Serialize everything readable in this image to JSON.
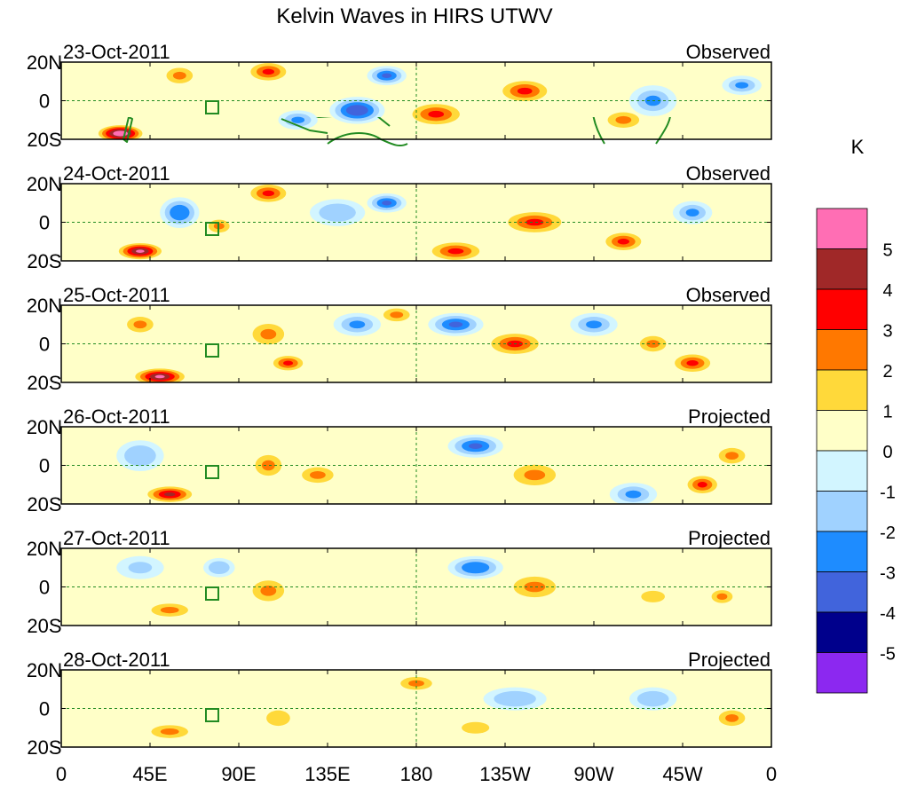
{
  "chart_data": {
    "type": "heatmap",
    "title": "Kelvin Waves in HIRS UTWV",
    "units": "K",
    "lat_ticks": [
      "20N",
      "0",
      "20S"
    ],
    "lon_ticks": [
      "0",
      "45E",
      "90E",
      "135E",
      "180",
      "135W",
      "90W",
      "45W",
      "0"
    ],
    "lon_range": [
      0,
      360
    ],
    "lat_range": [
      -20,
      20
    ],
    "colorbar": {
      "labels": [
        "5",
        "4",
        "3",
        "2",
        "1",
        "0",
        "-1",
        "-2",
        "-3",
        "-4",
        "-5"
      ],
      "colors": [
        "#ff6eb4",
        "#a02828",
        "#ff0000",
        "#ff7800",
        "#ffd93a",
        "#ffffc8",
        "#d2f5ff",
        "#a0d2ff",
        "#1e8cff",
        "#4164dc",
        "#00008c",
        "#8c28f0"
      ]
    },
    "coast_color": "#228b22",
    "panels": [
      {
        "date": "23-Oct-2011",
        "label": "Observed",
        "blobs": [
          [
            30,
            -17,
            13,
            5,
            5.3
          ],
          [
            60,
            13,
            10,
            6,
            2
          ],
          [
            105,
            15,
            12,
            6,
            3
          ],
          [
            120,
            -10,
            10,
            5,
            -2
          ],
          [
            150,
            -5,
            14,
            7,
            -3.5
          ],
          [
            165,
            13,
            10,
            5,
            -3
          ],
          [
            190,
            -7,
            16,
            7,
            2.5
          ],
          [
            235,
            5,
            15,
            7,
            3
          ],
          [
            285,
            -10,
            12,
            6,
            2
          ],
          [
            300,
            0,
            12,
            8,
            -2
          ],
          [
            345,
            8,
            10,
            5,
            -2
          ]
        ]
      },
      {
        "date": "24-Oct-2011",
        "label": "Observed",
        "blobs": [
          [
            40,
            -15,
            13,
            5,
            4.5
          ],
          [
            60,
            5,
            10,
            8,
            -2.5
          ],
          [
            80,
            -2,
            8,
            5,
            2
          ],
          [
            105,
            15,
            12,
            6,
            2.5
          ],
          [
            140,
            5,
            14,
            7,
            -1.5
          ],
          [
            165,
            10,
            10,
            5,
            -3
          ],
          [
            200,
            -15,
            16,
            6,
            2.5
          ],
          [
            240,
            0,
            18,
            7,
            3
          ],
          [
            285,
            -10,
            12,
            6,
            2.5
          ],
          [
            320,
            5,
            10,
            6,
            -2
          ]
        ]
      },
      {
        "date": "25-Oct-2011",
        "label": "Observed",
        "blobs": [
          [
            50,
            -17,
            15,
            5,
            4.5
          ],
          [
            40,
            10,
            10,
            6,
            2
          ],
          [
            105,
            5,
            12,
            8,
            2
          ],
          [
            115,
            -10,
            10,
            5,
            2.5
          ],
          [
            150,
            10,
            12,
            6,
            -2
          ],
          [
            170,
            15,
            10,
            5,
            2
          ],
          [
            200,
            10,
            14,
            6,
            -3
          ],
          [
            230,
            0,
            16,
            7,
            2.5
          ],
          [
            270,
            10,
            12,
            6,
            -2
          ],
          [
            300,
            0,
            10,
            6,
            2
          ],
          [
            320,
            -10,
            12,
            6,
            2.5
          ]
        ]
      },
      {
        "date": "26-Oct-2011",
        "label": "Projected",
        "blobs": [
          [
            55,
            -15,
            14,
            5,
            3.5
          ],
          [
            40,
            5,
            12,
            8,
            -1.5
          ],
          [
            105,
            0,
            10,
            8,
            2
          ],
          [
            130,
            -5,
            12,
            6,
            1.5
          ],
          [
            210,
            10,
            14,
            6,
            -3
          ],
          [
            240,
            -5,
            16,
            8,
            1.5
          ],
          [
            290,
            -15,
            12,
            6,
            -2
          ],
          [
            325,
            -10,
            10,
            6,
            2.5
          ],
          [
            340,
            5,
            10,
            6,
            1.5
          ]
        ]
      },
      {
        "date": "27-Oct-2011",
        "label": "Projected",
        "blobs": [
          [
            55,
            -12,
            14,
            5,
            2
          ],
          [
            40,
            10,
            12,
            6,
            -1
          ],
          [
            105,
            -2,
            12,
            8,
            1.5
          ],
          [
            80,
            10,
            8,
            5,
            -1.5
          ],
          [
            210,
            10,
            14,
            6,
            -2.5
          ],
          [
            240,
            0,
            16,
            8,
            1.5
          ],
          [
            300,
            -5,
            12,
            6,
            1
          ],
          [
            335,
            -5,
            8,
            5,
            2
          ]
        ]
      },
      {
        "date": "28-Oct-2011",
        "label": "Projected",
        "blobs": [
          [
            55,
            -12,
            14,
            5,
            1.5
          ],
          [
            110,
            -5,
            12,
            8,
            1.2
          ],
          [
            180,
            13,
            12,
            5,
            2
          ],
          [
            230,
            5,
            16,
            6,
            -1.5
          ],
          [
            210,
            -10,
            14,
            6,
            1
          ],
          [
            300,
            5,
            12,
            6,
            -1.5
          ],
          [
            340,
            -5,
            10,
            6,
            1.5
          ]
        ]
      }
    ]
  }
}
